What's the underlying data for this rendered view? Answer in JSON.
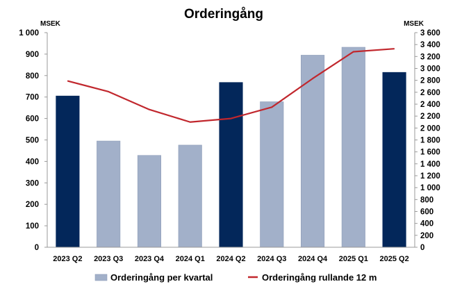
{
  "chart_data": {
    "type": "bar+line",
    "title": "Orderingång",
    "y_left_unit": "MSEK",
    "y_right_unit": "MSEK",
    "ylim_left": [
      0,
      1000
    ],
    "ylim_right": [
      0,
      3600
    ],
    "y_left_ticks": [
      "0",
      "100",
      "200",
      "300",
      "400",
      "500",
      "600",
      "700",
      "800",
      "900",
      "1 000"
    ],
    "y_right_ticks": [
      "0",
      "200",
      "400",
      "600",
      "800",
      "1 000",
      "1 200",
      "1 400",
      "1 600",
      "1 800",
      "2 000",
      "2 200",
      "2 400",
      "2 600",
      "2 800",
      "3 000",
      "3 200",
      "3 400",
      "3 600"
    ],
    "categories": [
      "2023 Q2",
      "2023 Q3",
      "2023 Q4",
      "2024 Q1",
      "2024 Q2",
      "2024 Q3",
      "2024 Q4",
      "2025 Q1",
      "2025 Q2"
    ],
    "series": [
      {
        "name": "Orderingång per kvartal",
        "type": "bar",
        "axis": "left",
        "values": [
          705,
          495,
          428,
          476,
          768,
          678,
          895,
          932,
          815
        ],
        "highlighted": [
          true,
          false,
          false,
          false,
          true,
          false,
          false,
          false,
          true
        ],
        "color": "#a2b0c9",
        "highlight_color": "#03275a"
      },
      {
        "name": "Orderingång rullande 12 m",
        "type": "line",
        "axis": "right",
        "values": [
          2790,
          2610,
          2310,
          2100,
          2160,
          2350,
          2830,
          3280,
          3330
        ],
        "color": "#c1272d"
      }
    ],
    "legend": "bottom"
  }
}
